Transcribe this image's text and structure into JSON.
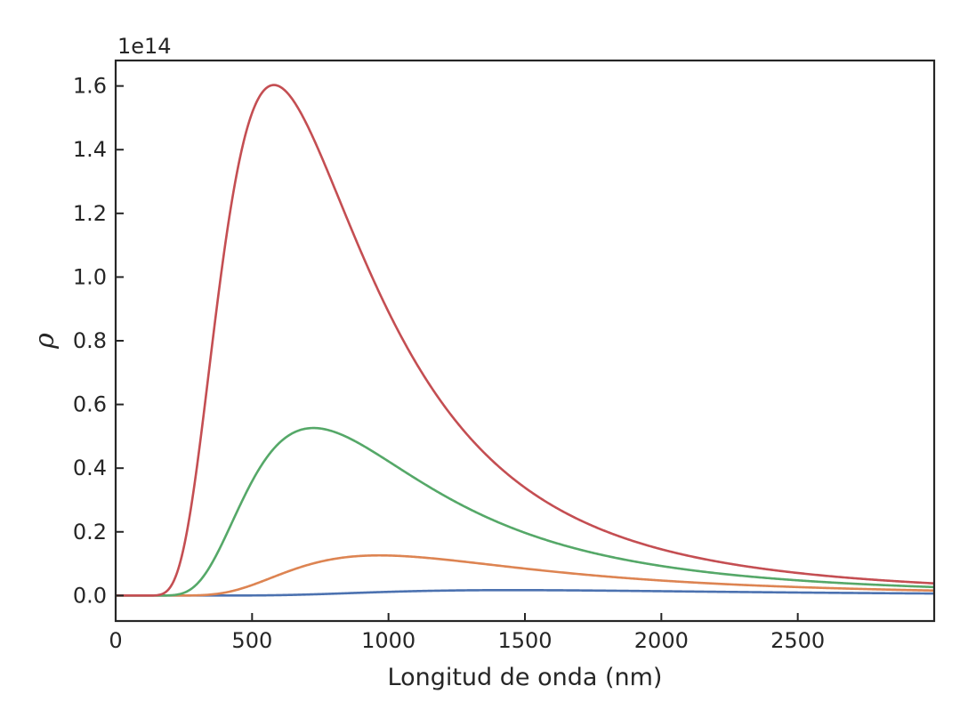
{
  "chart_data": {
    "type": "line",
    "title": "",
    "xlabel": "Longitud de onda (nm)",
    "ylabel": "ρ",
    "y_offset_text": "1e14",
    "y_scale": 100000000000000.0,
    "xlim": [
      0,
      3000
    ],
    "ylim": [
      -0.08,
      1.68
    ],
    "xticks": [
      0,
      500,
      1000,
      1500,
      2000,
      2500
    ],
    "xtick_labels": [
      "0",
      "500",
      "1000",
      "1500",
      "2000",
      "2500"
    ],
    "yticks": [
      0.0,
      0.2,
      0.4,
      0.6,
      0.8,
      1.0,
      1.2,
      1.4,
      1.6
    ],
    "ytick_labels": [
      "0.0",
      "0.2",
      "0.4",
      "0.6",
      "0.8",
      "1.0",
      "1.2",
      "1.4",
      "1.6"
    ],
    "grid": false,
    "legend": "none",
    "series": [
      {
        "color": "#4c72b0",
        "peak_x": 1450,
        "peak_y": 0.017
      },
      {
        "color": "#dd8452",
        "peak_x": 966,
        "peak_y": 0.126
      },
      {
        "color": "#55a868",
        "peak_x": 725,
        "peak_y": 0.526
      },
      {
        "color": "#c44e52",
        "peak_x": 580,
        "peak_y": 1.603
      }
    ]
  }
}
